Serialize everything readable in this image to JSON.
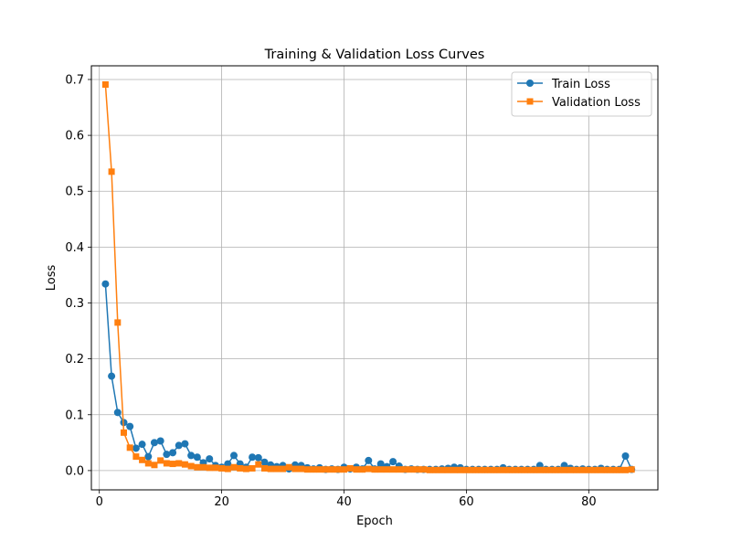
{
  "chart_data": {
    "type": "line",
    "title": "Training & Validation Loss Curves",
    "xlabel": "Epoch",
    "ylabel": "Loss",
    "xlim": [
      -1.3,
      91.3
    ],
    "ylim": [
      -0.0345,
      0.7245
    ],
    "xticks": [
      0,
      20,
      40,
      60,
      80
    ],
    "yticks": [
      0.0,
      0.1,
      0.2,
      0.3,
      0.4,
      0.5,
      0.6,
      0.7
    ],
    "xtick_labels": [
      "0",
      "20",
      "40",
      "60",
      "80"
    ],
    "ytick_labels": [
      "0.0",
      "0.1",
      "0.2",
      "0.3",
      "0.4",
      "0.5",
      "0.6",
      "0.7"
    ],
    "grid": true,
    "legend_position": "top-right",
    "x": [
      1,
      2,
      3,
      4,
      5,
      6,
      7,
      8,
      9,
      10,
      11,
      12,
      13,
      14,
      15,
      16,
      17,
      18,
      19,
      20,
      21,
      22,
      23,
      24,
      25,
      26,
      27,
      28,
      29,
      30,
      31,
      32,
      33,
      34,
      35,
      36,
      37,
      38,
      39,
      40,
      41,
      42,
      43,
      44,
      45,
      46,
      47,
      48,
      49,
      50,
      51,
      52,
      53,
      54,
      55,
      56,
      57,
      58,
      59,
      60,
      61,
      62,
      63,
      64,
      65,
      66,
      67,
      68,
      69,
      70,
      71,
      72,
      73,
      74,
      75,
      76,
      77,
      78,
      79,
      80,
      81,
      82,
      83,
      84,
      85,
      86,
      87
    ],
    "series": [
      {
        "name": "Train Loss",
        "color": "#1f77b4",
        "marker": "circle",
        "values": [
          0.334,
          0.169,
          0.104,
          0.086,
          0.079,
          0.04,
          0.047,
          0.025,
          0.05,
          0.053,
          0.029,
          0.032,
          0.045,
          0.048,
          0.027,
          0.024,
          0.014,
          0.021,
          0.009,
          0.006,
          0.012,
          0.027,
          0.012,
          0.006,
          0.024,
          0.023,
          0.015,
          0.01,
          0.007,
          0.009,
          0.003,
          0.01,
          0.009,
          0.005,
          0.003,
          0.005,
          0.002,
          0.003,
          0.002,
          0.006,
          0.003,
          0.006,
          0.003,
          0.018,
          0.003,
          0.012,
          0.007,
          0.016,
          0.008,
          0.002,
          0.003,
          0.002,
          0.002,
          0.002,
          0.002,
          0.003,
          0.004,
          0.006,
          0.005,
          0.002,
          0.002,
          0.002,
          0.002,
          0.002,
          0.002,
          0.005,
          0.002,
          0.002,
          0.002,
          0.002,
          0.002,
          0.009,
          0.002,
          0.002,
          0.002,
          0.009,
          0.004,
          0.002,
          0.003,
          0.002,
          0.002,
          0.004,
          0.002,
          0.002,
          0.002,
          0.026,
          0.002
        ]
      },
      {
        "name": "Validation Loss",
        "color": "#ff7f0e",
        "marker": "square",
        "values": [
          0.691,
          0.535,
          0.265,
          0.068,
          0.041,
          0.025,
          0.019,
          0.013,
          0.01,
          0.018,
          0.013,
          0.012,
          0.013,
          0.011,
          0.008,
          0.006,
          0.006,
          0.005,
          0.005,
          0.004,
          0.003,
          0.006,
          0.004,
          0.003,
          0.004,
          0.011,
          0.004,
          0.003,
          0.003,
          0.003,
          0.006,
          0.003,
          0.003,
          0.002,
          0.002,
          0.002,
          0.002,
          0.002,
          0.002,
          0.002,
          0.004,
          0.002,
          0.002,
          0.003,
          0.002,
          0.002,
          0.002,
          0.002,
          0.002,
          0.002,
          0.002,
          0.002,
          0.002,
          0.001,
          0.001,
          0.001,
          0.001,
          0.001,
          0.001,
          0.001,
          0.001,
          0.001,
          0.001,
          0.001,
          0.001,
          0.001,
          0.001,
          0.001,
          0.001,
          0.001,
          0.001,
          0.001,
          0.001,
          0.001,
          0.001,
          0.001,
          0.001,
          0.001,
          0.001,
          0.001,
          0.001,
          0.001,
          0.001,
          0.001,
          0.001,
          0.001,
          0.002
        ]
      }
    ]
  }
}
